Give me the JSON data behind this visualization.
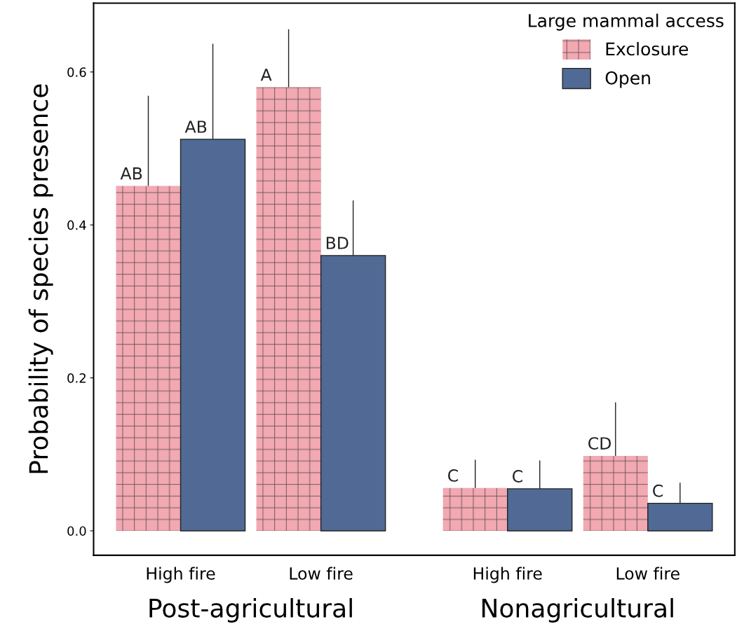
{
  "chart_data": {
    "type": "bar",
    "ylabel": "Probability of species presence",
    "legend_title": "Large mammal access",
    "legend": "top right",
    "categories": [
      "High fire",
      "Low fire",
      "High fire",
      "Low fire"
    ],
    "annotations": [
      "Post-agricultural",
      "Nonagricultural"
    ],
    "series": [
      {
        "name": "Exclosure",
        "color": "#f2a9b1",
        "values": [
          0.451,
          0.58,
          0.056,
          0.098
        ],
        "errors": [
          [
            0.451,
            0.569
          ],
          [
            0.58,
            0.656
          ],
          [
            0.056,
            0.093
          ],
          [
            0.098,
            0.168
          ]
        ],
        "value_labels": [
          "AB",
          "A",
          "C",
          "CD"
        ]
      },
      {
        "name": "Open",
        "color": "#506a95",
        "values": [
          0.512,
          0.36,
          0.055,
          0.036
        ],
        "errors": [
          [
            0.512,
            0.637
          ],
          [
            0.36,
            0.432
          ],
          [
            0.055,
            0.092
          ],
          [
            0.036,
            0.063
          ]
        ],
        "value_labels": [
          "AB",
          "BD",
          "C",
          "C"
        ]
      }
    ],
    "ylim": [
      -0.032,
      0.69
    ],
    "yticks": [
      {
        "value": 0,
        "label": "0.0"
      },
      {
        "value": 0.2,
        "label": "0.2"
      },
      {
        "value": 0.4,
        "label": "0.4"
      },
      {
        "value": 0.6,
        "label": "0.6"
      }
    ],
    "grid": false
  }
}
